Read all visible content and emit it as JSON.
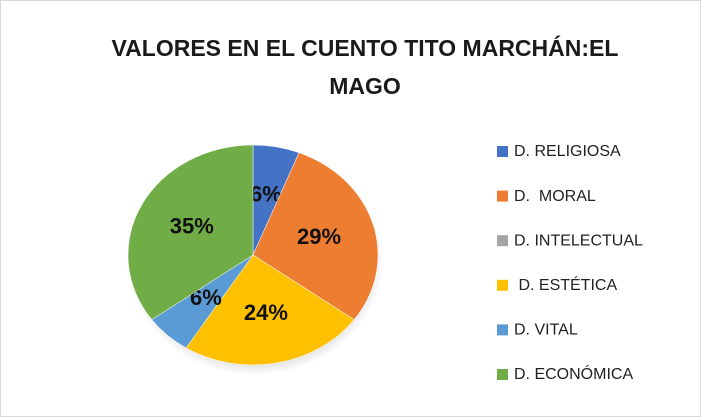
{
  "chart_data": {
    "type": "pie",
    "title": "VALORES EN EL CUENTO TITO MARCHÁN:EL MAGO",
    "categories": [
      "D. RELIGIOSA",
      "D.  MORAL",
      "D. INTELECTUAL",
      " D. ESTÉTICA",
      "D. VITAL",
      "D. ECONÓMICA"
    ],
    "values": [
      6,
      29,
      0,
      24,
      6,
      35
    ],
    "value_labels": [
      "6%",
      "29%",
      null,
      "24%",
      "6%",
      "35%"
    ],
    "colors": [
      "#4472c4",
      "#ed7d31",
      "#a5a5a5",
      "#ffc000",
      "#5b9bd5",
      "#70ad47"
    ],
    "legend": "right"
  }
}
